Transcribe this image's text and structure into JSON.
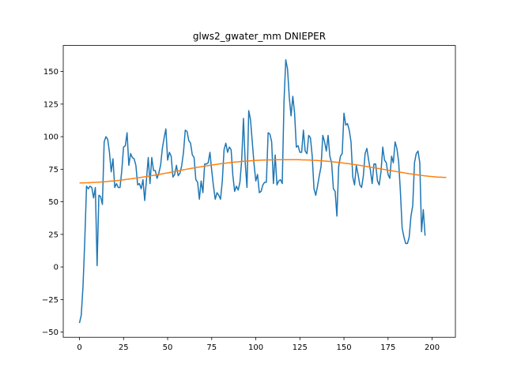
{
  "chart_data": {
    "type": "line",
    "title": "glws2_gwater_mm DNIEPER",
    "xlabel": "",
    "ylabel": "",
    "xlim": [
      -9.2,
      213.2
    ],
    "ylim": [
      -54,
      170
    ],
    "grid": false,
    "xticks": [
      0,
      25,
      50,
      75,
      100,
      125,
      150,
      175,
      200
    ],
    "yticks": [
      -50,
      -25,
      0,
      25,
      50,
      75,
      100,
      125,
      150
    ],
    "xtick_labels": [
      "0",
      "25",
      "50",
      "75",
      "100",
      "125",
      "150",
      "175",
      "200"
    ],
    "ytick_labels": [
      "−50",
      "−25",
      "0",
      "25",
      "50",
      "75",
      "100",
      "125",
      "150"
    ],
    "series": [
      {
        "color": "#1f77b4",
        "x_start": 0,
        "values": [
          -43,
          -37,
          -15,
          20,
          62,
          60,
          62,
          61,
          53,
          61,
          1,
          55,
          54,
          48,
          96,
          100,
          98,
          88,
          73,
          83,
          61,
          64,
          61,
          61,
          74,
          92,
          93,
          103,
          78,
          87,
          84,
          83,
          78,
          63,
          64,
          60,
          67,
          51,
          67,
          84,
          64,
          84,
          74,
          74,
          68,
          72,
          78,
          91,
          99,
          106,
          82,
          88,
          85,
          69,
          71,
          78,
          70,
          72,
          78,
          88,
          105,
          104,
          97,
          95,
          86,
          84,
          67,
          65,
          52,
          66,
          57,
          79,
          79,
          80,
          88,
          74,
          62,
          52,
          57,
          55,
          52,
          66,
          90,
          95,
          88,
          92,
          90,
          70,
          58,
          62,
          59,
          65,
          82,
          114,
          80,
          61,
          120,
          113,
          96,
          79,
          66,
          71,
          57,
          58,
          63,
          65,
          65,
          103,
          102,
          96,
          64,
          86,
          63,
          66,
          67,
          64,
          127,
          159,
          152,
          130,
          116,
          131,
          118,
          92,
          93,
          88,
          88,
          105,
          89,
          87,
          101,
          99,
          85,
          60,
          55,
          62,
          70,
          77,
          101,
          96,
          89,
          101,
          85,
          80,
          60,
          58,
          39,
          77,
          85,
          87,
          118,
          109,
          110,
          105,
          96,
          69,
          63,
          78,
          71,
          63,
          61,
          70,
          87,
          91,
          82,
          74,
          64,
          79,
          79,
          66,
          63,
          73,
          92,
          82,
          80,
          71,
          68,
          85,
          80,
          96,
          91,
          81,
          58,
          30,
          23,
          18,
          18,
          23,
          39,
          47,
          80,
          87,
          89,
          80,
          27,
          44,
          24
        ]
      },
      {
        "color": "#ff7f0e",
        "x_start": 0,
        "values": [
          64.5,
          64.5,
          64.5,
          64.6,
          64.6,
          64.6,
          64.7,
          64.8,
          64.9,
          65.0,
          65.0,
          65.1,
          65.2,
          65.3,
          65.4,
          65.5,
          65.6,
          65.8,
          65.9,
          66.0,
          66.1,
          66.3,
          66.4,
          66.6,
          66.7,
          66.9,
          67.1,
          67.3,
          67.5,
          67.6,
          67.8,
          68.0,
          68.2,
          68.4,
          68.6,
          68.8,
          69.0,
          69.2,
          69.4,
          69.6,
          69.8,
          70.1,
          70.3,
          70.5,
          70.8,
          71.0,
          71.2,
          71.5,
          71.7,
          72.0,
          72.2,
          72.5,
          72.7,
          73.0,
          73.3,
          73.5,
          73.8,
          74.0,
          74.3,
          74.6,
          74.8,
          75.1,
          75.3,
          75.6,
          75.8,
          76.0,
          76.3,
          76.5,
          76.7,
          76.9,
          77.2,
          77.4,
          77.6,
          77.8,
          78.0,
          78.2,
          78.4,
          78.6,
          78.8,
          79.0,
          79.2,
          79.4,
          79.5,
          79.7,
          79.9,
          80.0,
          80.2,
          80.3,
          80.5,
          80.6,
          80.7,
          80.9,
          81.0,
          81.1,
          81.2,
          81.3,
          81.4,
          81.5,
          81.6,
          81.7,
          81.8,
          81.9,
          81.9,
          82.0,
          82.0,
          82.1,
          82.1,
          82.2,
          82.2,
          82.2,
          82.3,
          82.3,
          82.3,
          82.3,
          82.3,
          82.3,
          82.3,
          82.3,
          82.3,
          82.3,
          82.3,
          82.3,
          82.3,
          82.3,
          82.3,
          82.3,
          82.2,
          82.2,
          82.2,
          82.1,
          82.1,
          82.0,
          81.9,
          81.9,
          81.8,
          81.7,
          81.6,
          81.5,
          81.4,
          81.3,
          81.2,
          81.1,
          81.0,
          80.8,
          80.7,
          80.5,
          80.4,
          80.2,
          80.1,
          79.9,
          79.7,
          79.6,
          79.4,
          79.2,
          79.0,
          78.8,
          78.6,
          78.4,
          78.2,
          78.0,
          77.8,
          77.5,
          77.3,
          77.1,
          76.9,
          76.6,
          76.4,
          76.2,
          76.0,
          75.7,
          75.5,
          75.3,
          75.0,
          74.8,
          74.6,
          74.3,
          74.1,
          73.9,
          73.6,
          73.4,
          73.2,
          72.9,
          72.7,
          72.5,
          72.3,
          72.0,
          71.8,
          71.6,
          71.4,
          71.2,
          71.0,
          70.8,
          70.6,
          70.4,
          70.3,
          70.1,
          69.9,
          69.8,
          69.6,
          69.5,
          69.4,
          69.2,
          69.1,
          69.0,
          68.9,
          68.9,
          68.8,
          68.8,
          68.7
        ]
      }
    ]
  }
}
